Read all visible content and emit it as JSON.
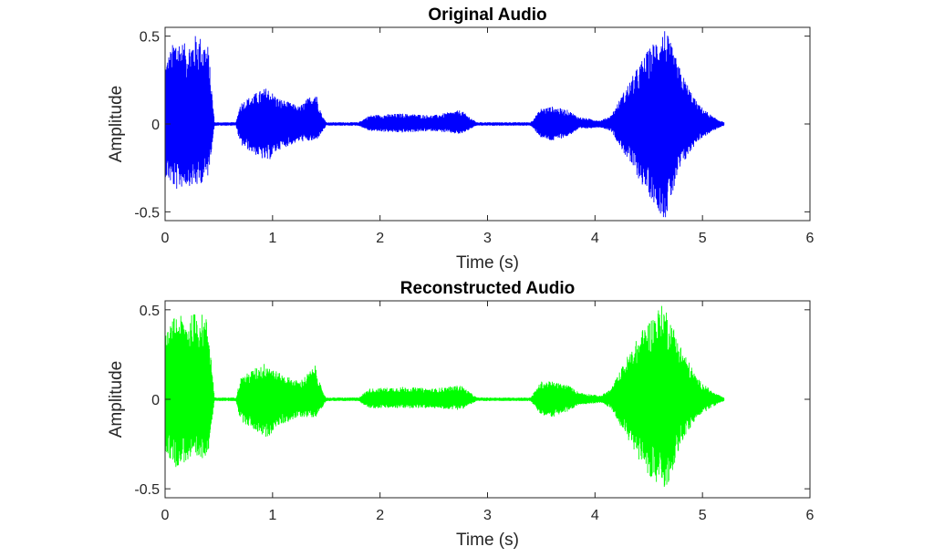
{
  "chart_data": [
    {
      "type": "line",
      "title": "Original Audio",
      "xlabel": "Time (s)",
      "ylabel": "Amplitude",
      "xlim": [
        0,
        6
      ],
      "ylim": [
        -0.55,
        0.55
      ],
      "xticks": [
        0,
        1,
        2,
        3,
        4,
        5,
        6
      ],
      "xtick_labels": [
        "0",
        "1",
        "2",
        "3",
        "4",
        "5",
        "6"
      ],
      "yticks": [
        -0.5,
        0,
        0.5
      ],
      "ytick_labels": [
        "-0.5",
        "0",
        "0.5"
      ],
      "grid": false,
      "color": "#0000ff",
      "series": [
        {
          "values_desc": "waveform envelope",
          "envelope": [
            {
              "t": 0.0,
              "upper": 0.35,
              "lower": -0.3
            },
            {
              "t": 0.1,
              "upper": 0.5,
              "lower": -0.38
            },
            {
              "t": 0.2,
              "upper": 0.45,
              "lower": -0.35
            },
            {
              "t": 0.3,
              "upper": 0.52,
              "lower": -0.36
            },
            {
              "t": 0.4,
              "upper": 0.45,
              "lower": -0.3
            },
            {
              "t": 0.46,
              "upper": 0.01,
              "lower": -0.01
            },
            {
              "t": 0.66,
              "upper": 0.01,
              "lower": -0.01
            },
            {
              "t": 0.7,
              "upper": 0.12,
              "lower": -0.12
            },
            {
              "t": 0.85,
              "upper": 0.18,
              "lower": -0.18
            },
            {
              "t": 0.95,
              "upper": 0.21,
              "lower": -0.22
            },
            {
              "t": 1.05,
              "upper": 0.15,
              "lower": -0.15
            },
            {
              "t": 1.25,
              "upper": 0.1,
              "lower": -0.1
            },
            {
              "t": 1.4,
              "upper": 0.19,
              "lower": -0.1
            },
            {
              "t": 1.46,
              "upper": 0.05,
              "lower": -0.05
            },
            {
              "t": 1.5,
              "upper": 0.01,
              "lower": -0.01
            },
            {
              "t": 1.8,
              "upper": 0.01,
              "lower": -0.01
            },
            {
              "t": 1.9,
              "upper": 0.05,
              "lower": -0.04
            },
            {
              "t": 2.2,
              "upper": 0.06,
              "lower": -0.05
            },
            {
              "t": 2.5,
              "upper": 0.05,
              "lower": -0.04
            },
            {
              "t": 2.75,
              "upper": 0.08,
              "lower": -0.06
            },
            {
              "t": 2.9,
              "upper": 0.01,
              "lower": -0.01
            },
            {
              "t": 3.4,
              "upper": 0.01,
              "lower": -0.01
            },
            {
              "t": 3.5,
              "upper": 0.09,
              "lower": -0.08
            },
            {
              "t": 3.6,
              "upper": 0.1,
              "lower": -0.1
            },
            {
              "t": 3.75,
              "upper": 0.08,
              "lower": -0.07
            },
            {
              "t": 3.85,
              "upper": 0.04,
              "lower": -0.03
            },
            {
              "t": 4.05,
              "upper": 0.02,
              "lower": -0.02
            },
            {
              "t": 4.15,
              "upper": 0.05,
              "lower": -0.04
            },
            {
              "t": 4.3,
              "upper": 0.22,
              "lower": -0.2
            },
            {
              "t": 4.45,
              "upper": 0.38,
              "lower": -0.36
            },
            {
              "t": 4.6,
              "upper": 0.52,
              "lower": -0.5
            },
            {
              "t": 4.65,
              "upper": 0.55,
              "lower": -0.55
            },
            {
              "t": 4.8,
              "upper": 0.3,
              "lower": -0.25
            },
            {
              "t": 4.95,
              "upper": 0.12,
              "lower": -0.1
            },
            {
              "t": 5.1,
              "upper": 0.04,
              "lower": -0.04
            },
            {
              "t": 5.2,
              "upper": 0.01,
              "lower": -0.01
            }
          ]
        }
      ]
    },
    {
      "type": "line",
      "title": "Reconstructed Audio",
      "xlabel": "Time (s)",
      "ylabel": "Amplitude",
      "xlim": [
        0,
        6
      ],
      "ylim": [
        -0.55,
        0.55
      ],
      "xticks": [
        0,
        1,
        2,
        3,
        4,
        5,
        6
      ],
      "xtick_labels": [
        "0",
        "1",
        "2",
        "3",
        "4",
        "5",
        "6"
      ],
      "yticks": [
        -0.5,
        0,
        0.5
      ],
      "ytick_labels": [
        "-0.5",
        "0",
        "0.5"
      ],
      "grid": false,
      "color": "#00ff00",
      "series": [
        {
          "values_desc": "waveform envelope",
          "envelope": [
            {
              "t": 0.0,
              "upper": 0.35,
              "lower": -0.3
            },
            {
              "t": 0.1,
              "upper": 0.48,
              "lower": -0.38
            },
            {
              "t": 0.2,
              "upper": 0.45,
              "lower": -0.35
            },
            {
              "t": 0.3,
              "upper": 0.5,
              "lower": -0.36
            },
            {
              "t": 0.4,
              "upper": 0.45,
              "lower": -0.3
            },
            {
              "t": 0.46,
              "upper": 0.01,
              "lower": -0.01
            },
            {
              "t": 0.66,
              "upper": 0.01,
              "lower": -0.01
            },
            {
              "t": 0.7,
              "upper": 0.12,
              "lower": -0.12
            },
            {
              "t": 0.85,
              "upper": 0.18,
              "lower": -0.18
            },
            {
              "t": 0.95,
              "upper": 0.21,
              "lower": -0.22
            },
            {
              "t": 1.05,
              "upper": 0.15,
              "lower": -0.15
            },
            {
              "t": 1.25,
              "upper": 0.1,
              "lower": -0.1
            },
            {
              "t": 1.4,
              "upper": 0.19,
              "lower": -0.1
            },
            {
              "t": 1.46,
              "upper": 0.05,
              "lower": -0.05
            },
            {
              "t": 1.5,
              "upper": 0.01,
              "lower": -0.01
            },
            {
              "t": 1.8,
              "upper": 0.01,
              "lower": -0.01
            },
            {
              "t": 1.9,
              "upper": 0.06,
              "lower": -0.05
            },
            {
              "t": 2.2,
              "upper": 0.07,
              "lower": -0.05
            },
            {
              "t": 2.5,
              "upper": 0.06,
              "lower": -0.05
            },
            {
              "t": 2.75,
              "upper": 0.08,
              "lower": -0.06
            },
            {
              "t": 2.9,
              "upper": 0.01,
              "lower": -0.01
            },
            {
              "t": 3.4,
              "upper": 0.01,
              "lower": -0.01
            },
            {
              "t": 3.5,
              "upper": 0.1,
              "lower": -0.09
            },
            {
              "t": 3.6,
              "upper": 0.1,
              "lower": -0.1
            },
            {
              "t": 3.75,
              "upper": 0.08,
              "lower": -0.07
            },
            {
              "t": 3.85,
              "upper": 0.04,
              "lower": -0.03
            },
            {
              "t": 4.05,
              "upper": 0.02,
              "lower": -0.02
            },
            {
              "t": 4.15,
              "upper": 0.06,
              "lower": -0.05
            },
            {
              "t": 4.3,
              "upper": 0.24,
              "lower": -0.22
            },
            {
              "t": 4.45,
              "upper": 0.4,
              "lower": -0.38
            },
            {
              "t": 4.6,
              "upper": 0.52,
              "lower": -0.5
            },
            {
              "t": 4.65,
              "upper": 0.53,
              "lower": -0.53
            },
            {
              "t": 4.8,
              "upper": 0.3,
              "lower": -0.25
            },
            {
              "t": 4.95,
              "upper": 0.12,
              "lower": -0.1
            },
            {
              "t": 5.1,
              "upper": 0.04,
              "lower": -0.04
            },
            {
              "t": 5.2,
              "upper": 0.01,
              "lower": -0.01
            }
          ]
        }
      ]
    }
  ]
}
